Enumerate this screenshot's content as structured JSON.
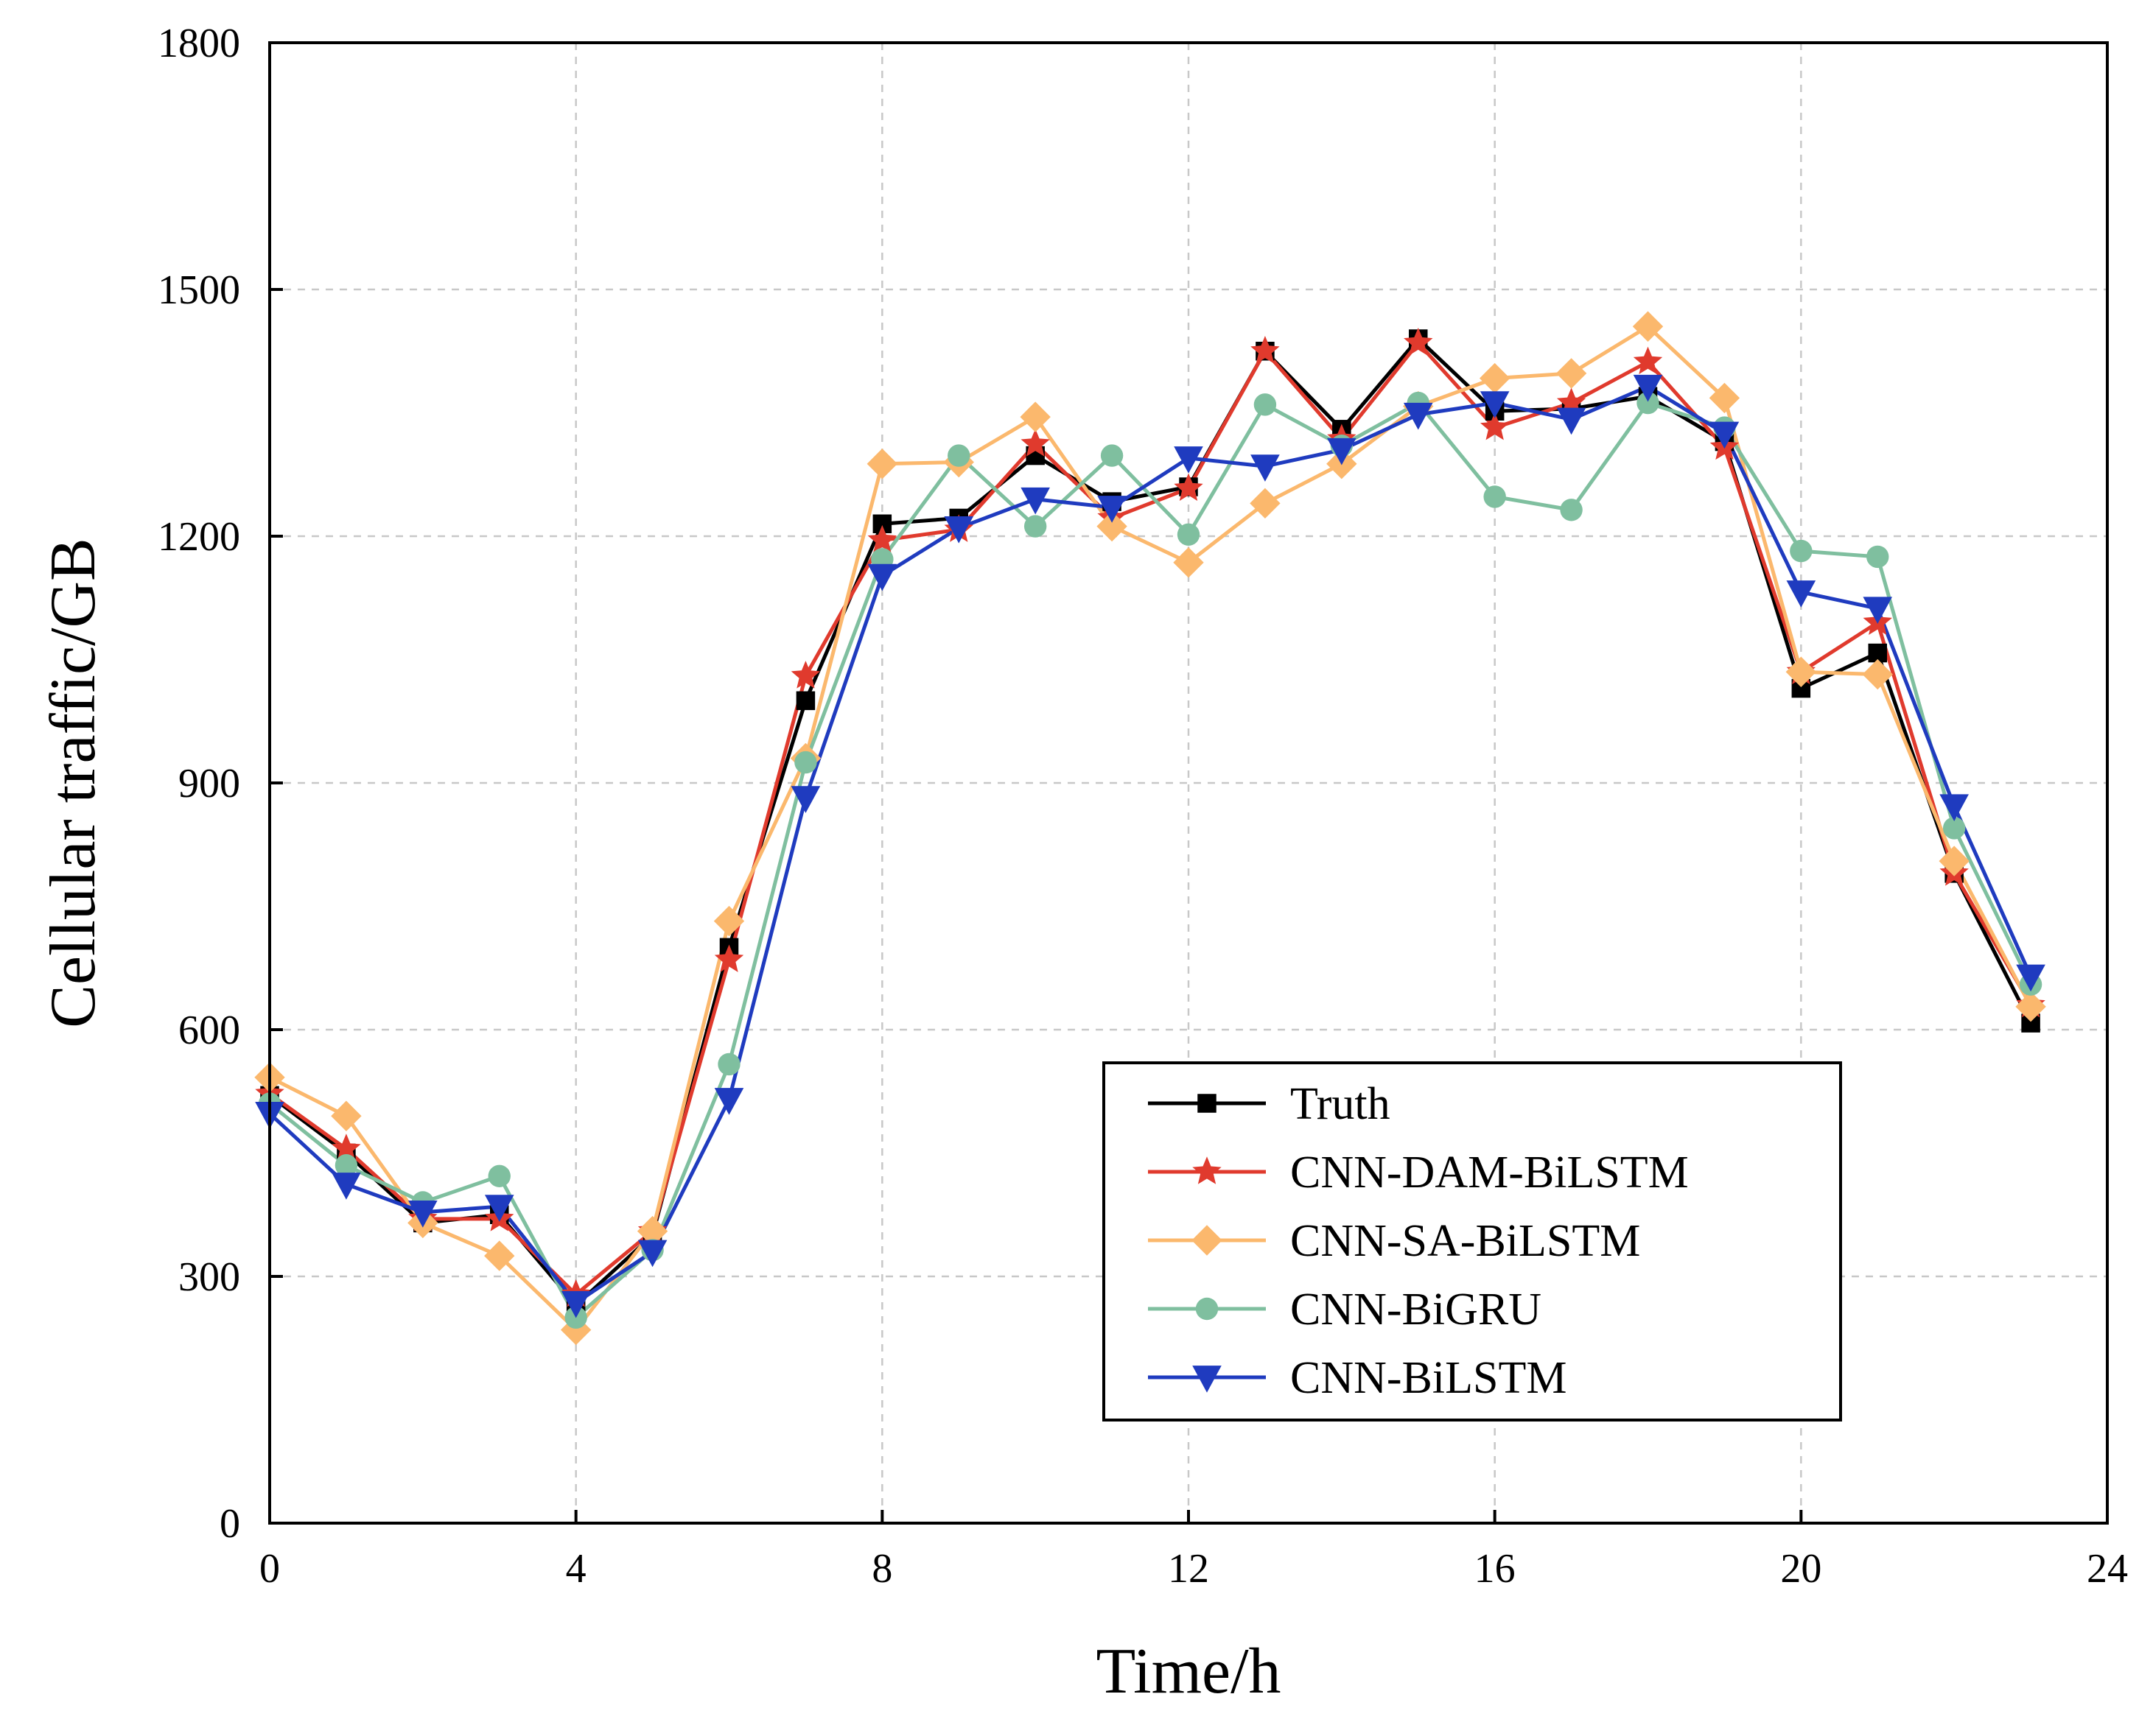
{
  "chart_data": {
    "type": "line",
    "title": "",
    "xlabel": "Time/h",
    "ylabel": "Cellular traffic/GB",
    "xlim": [
      0,
      24
    ],
    "ylim": [
      0,
      1800
    ],
    "xticks": [
      0,
      4,
      8,
      12,
      16,
      20,
      24
    ],
    "xtick_labels": [
      "0",
      "4",
      "8",
      "12",
      "16",
      "20",
      "24"
    ],
    "yticks": [
      0,
      300,
      600,
      900,
      1200,
      1500,
      1800
    ],
    "ytick_labels": [
      "0",
      "300",
      "600",
      "900",
      "1200",
      "1500",
      "1800"
    ],
    "grid": true,
    "legend_position": "bottom-right",
    "x": [
      0,
      1,
      2,
      3,
      4,
      5,
      6,
      7,
      8,
      9,
      10,
      11,
      12,
      13,
      14,
      15,
      16,
      17,
      18,
      19,
      20,
      21,
      22,
      23
    ],
    "series": [
      {
        "name": "Truth",
        "color": "#000000",
        "marker": "square",
        "values": [
          520,
          450,
          365,
          375,
          265,
          350,
          700,
          1000,
          1215,
          1222,
          1298,
          1242,
          1260,
          1425,
          1330,
          1440,
          1352,
          1355,
          1370,
          1315,
          1015,
          1058,
          790,
          608
        ]
      },
      {
        "name": "CNN-DAM-BiLSTM",
        "color": "#e03a2d",
        "marker": "star",
        "values": [
          522,
          455,
          370,
          370,
          278,
          355,
          685,
          1030,
          1195,
          1208,
          1312,
          1222,
          1258,
          1425,
          1318,
          1435,
          1332,
          1362,
          1412,
          1308,
          1035,
          1095,
          790,
          630
        ]
      },
      {
        "name": "CNN-SA-BiLSTM",
        "color": "#fbb86d",
        "marker": "diamond",
        "values": [
          542,
          495,
          365,
          325,
          235,
          355,
          732,
          930,
          1288,
          1290,
          1345,
          1212,
          1168,
          1240,
          1288,
          1358,
          1392,
          1398,
          1455,
          1368,
          1035,
          1032,
          805,
          628
        ]
      },
      {
        "name": "CNN-BiGRU",
        "color": "#7fbf9f",
        "marker": "circle",
        "values": [
          510,
          435,
          390,
          422,
          250,
          332,
          558,
          925,
          1172,
          1298,
          1212,
          1298,
          1202,
          1360,
          1310,
          1362,
          1248,
          1232,
          1362,
          1332,
          1182,
          1175,
          845,
          655
        ]
      },
      {
        "name": "CNN-BiLSTM",
        "color": "#1f3bbf",
        "marker": "triangle-down",
        "values": [
          498,
          412,
          378,
          385,
          268,
          330,
          515,
          882,
          1152,
          1210,
          1245,
          1235,
          1295,
          1285,
          1305,
          1348,
          1362,
          1342,
          1382,
          1325,
          1132,
          1112,
          872,
          665
        ]
      }
    ]
  }
}
